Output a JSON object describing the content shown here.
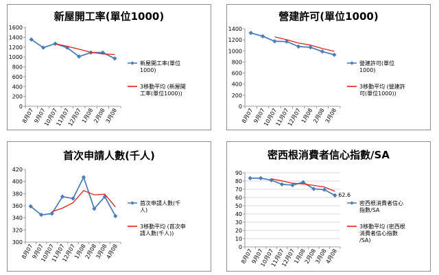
{
  "chart_data": [
    {
      "type": "line",
      "title": "新屋開工率(單位1000)",
      "categories": [
        "8月07",
        "9月07",
        "10月07",
        "11月07",
        "12月07",
        "1月08",
        "2月08",
        "3月08"
      ],
      "ylim": [
        0,
        1600
      ],
      "yticks": [
        0,
        200,
        400,
        600,
        800,
        1000,
        1200,
        1400,
        1600
      ],
      "grid": false,
      "legend": "right",
      "series": [
        {
          "name": "新屋開工率(單位1000)",
          "values": [
            1355,
            1190,
            1270,
            1190,
            1010,
            1090,
            1090,
            970
          ],
          "color": "#4a7ebb",
          "marker": "diamond"
        },
        {
          "name": "3移動平均 (新屋開工率(單位1000))",
          "moving_average": true,
          "period": 3,
          "values": [
            null,
            null,
            1272,
            1217,
            1157,
            1097,
            1063,
            1050
          ],
          "color": "#e0201b"
        }
      ],
      "legend_lines": [
        [
          "新屋開工率(單位",
          "1000)"
        ],
        [
          "3移動平均 (新屋開",
          "工率(單位1000))"
        ]
      ]
    },
    {
      "type": "line",
      "title": "營建許可(單位1000)",
      "categories": [
        "8月07",
        "9月07",
        "10月07",
        "11月07",
        "12月07",
        "1月08",
        "2月08",
        "3月08"
      ],
      "ylim": [
        0,
        1400
      ],
      "yticks": [
        0,
        200,
        400,
        600,
        800,
        1000,
        1200,
        1400
      ],
      "grid": false,
      "legend": "right",
      "series": [
        {
          "name": "營建許可(單位1000)",
          "values": [
            1325,
            1265,
            1175,
            1170,
            1080,
            1065,
            990,
            930
          ],
          "color": "#4a7ebb",
          "marker": "diamond"
        },
        {
          "name": "3移動平均 (營建許可(單位1000))",
          "moving_average": true,
          "period": 3,
          "values": [
            null,
            null,
            1255,
            1203,
            1142,
            1105,
            1045,
            995
          ],
          "color": "#e0201b"
        }
      ],
      "legend_lines": [
        [
          "營建許可(單位",
          "1000)"
        ],
        [
          "3移動平均 (營建許",
          "可(單位1000))"
        ]
      ]
    },
    {
      "type": "line",
      "title": "首次申請人數(千人)",
      "categories": [
        "8月07",
        "9月07",
        "10月07",
        "11月07",
        "12月07",
        "1月08",
        "2月08",
        "3月08",
        "4月08"
      ],
      "ylim": [
        300,
        420
      ],
      "yticks": [
        300,
        320,
        340,
        360,
        380,
        400,
        420
      ],
      "grid": false,
      "legend": "right",
      "series": [
        {
          "name": "首次申請人數(千人)",
          "values": [
            359,
            345,
            347,
            375,
            372,
            407,
            355,
            375,
            343
          ],
          "color": "#4a7ebb",
          "marker": "diamond"
        },
        {
          "name": "3移動平均 (首次申請人數(千人))",
          "moving_average": true,
          "period": 3,
          "values": [
            null,
            null,
            350,
            356,
            365,
            385,
            378,
            379,
            358
          ],
          "color": "#e0201b"
        }
      ],
      "legend_lines": [
        [
          "首次申請人數(千",
          "人)"
        ],
        [
          "3移動平均 (首次申",
          "請人數(千人))"
        ]
      ]
    },
    {
      "type": "line",
      "title": "密西根消費者信心指數/SA",
      "categories": [
        "8月07",
        "9月07",
        "10月07",
        "11月07",
        "12月07",
        "1月08",
        "2月08",
        "3月08",
        "4月08"
      ],
      "ylim": [
        0,
        90
      ],
      "yticks": [
        0,
        10,
        20,
        30,
        40,
        50,
        60,
        70,
        80,
        90
      ],
      "grid": true,
      "legend": "right",
      "annotation": "62.6",
      "series": [
        {
          "name": "密西根消費者信心指數/SA",
          "values": [
            83.5,
            83.5,
            81,
            76,
            75,
            78.5,
            70.5,
            69.5,
            62.6
          ],
          "color": "#4a7ebb",
          "marker": "diamond"
        },
        {
          "name": "3移動平均 (密西根消費者信心指數/SA)",
          "moving_average": true,
          "period": 3,
          "values": [
            null,
            null,
            82.7,
            80.2,
            77.3,
            76.5,
            74.7,
            72.8,
            67.5
          ],
          "color": "#e0201b"
        }
      ],
      "legend_lines": [
        [
          "密西根消費者信心",
          "指數/SA"
        ],
        [
          "3移動平均 (密西根",
          "消費者信心指數",
          "/SA)"
        ]
      ]
    }
  ]
}
